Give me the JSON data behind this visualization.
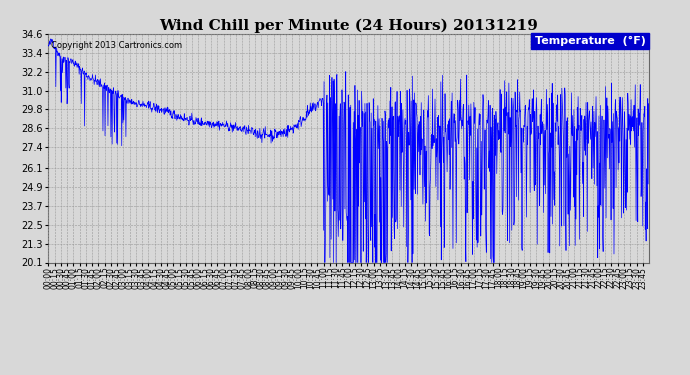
{
  "title": "Wind Chill per Minute (24 Hours) 20131219",
  "copyright_text": "Copyright 2013 Cartronics.com",
  "legend_label": "Temperature  (°F)",
  "background_color": "#d8d8d8",
  "plot_bg_color": "#d8d8d8",
  "line_color": "#0000ff",
  "ylim": [
    20.1,
    34.6
  ],
  "yticks": [
    20.1,
    21.3,
    22.5,
    23.7,
    24.9,
    26.1,
    27.4,
    28.6,
    29.8,
    31.0,
    32.2,
    33.4,
    34.6
  ],
  "xlabel_interval_minutes": 15,
  "total_minutes": 1440,
  "title_fontsize": 11,
  "axis_fontsize": 7,
  "legend_fontsize": 8,
  "copyright_fontsize": 6
}
